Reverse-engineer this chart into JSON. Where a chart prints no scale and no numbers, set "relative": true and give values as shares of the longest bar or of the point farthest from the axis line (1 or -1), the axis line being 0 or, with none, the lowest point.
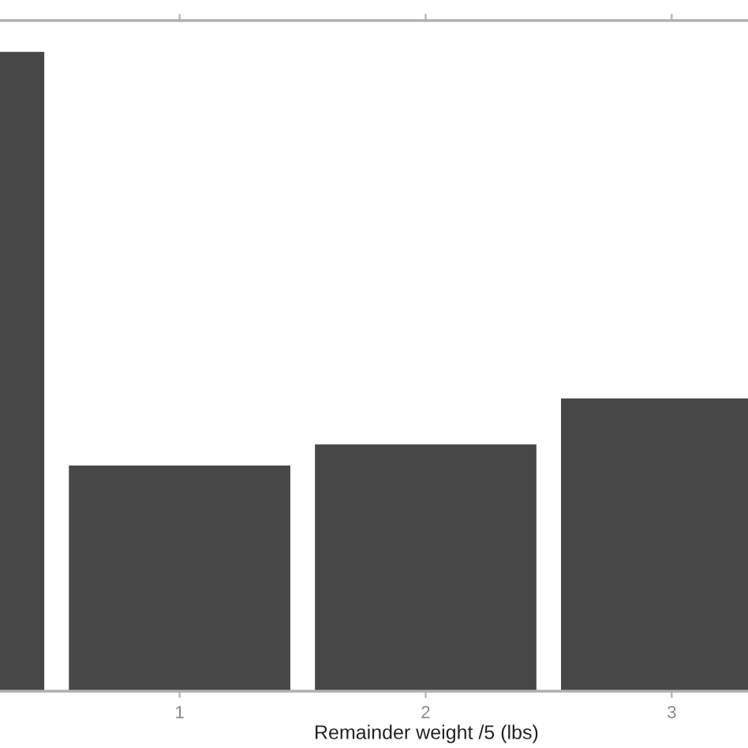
{
  "chart_data": {
    "type": "bar",
    "xlabel": "Remainder weight /5 (lbs)",
    "categories": [
      null,
      "1",
      "2",
      "3"
    ],
    "values": [
      1,
      0.353,
      0.386,
      0.458
    ],
    "color": "#474747",
    "relative": true,
    "grid": false,
    "legend": false
  }
}
